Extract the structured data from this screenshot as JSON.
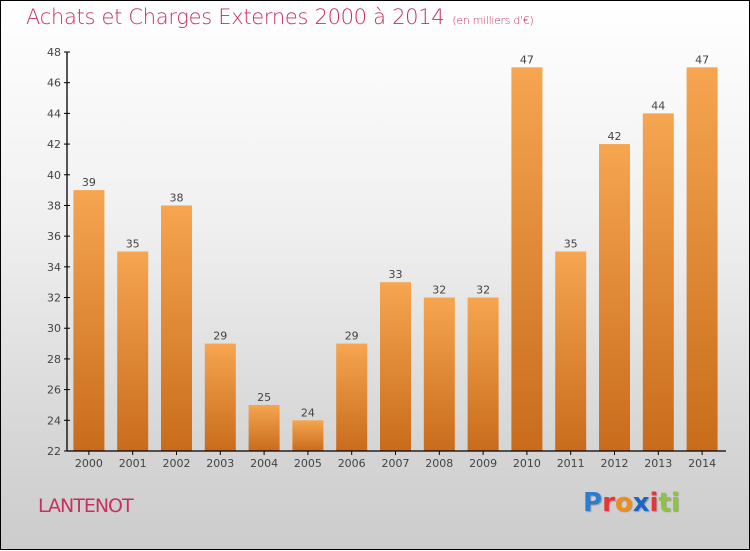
{
  "chart_data": {
    "type": "bar",
    "title": "Achats et Charges Externes 2000 à 2014",
    "subtitle": "(en milliers d'€)",
    "categories": [
      "2000",
      "2001",
      "2002",
      "2003",
      "2004",
      "2005",
      "2006",
      "2007",
      "2008",
      "2009",
      "2010",
      "2011",
      "2012",
      "2013",
      "2014"
    ],
    "values": [
      39,
      35,
      38,
      29,
      25,
      24,
      29,
      33,
      32,
      32,
      47,
      35,
      42,
      44,
      47
    ],
    "xlabel": "",
    "ylabel": "",
    "ylim": [
      22,
      48
    ],
    "yticks": [
      22,
      24,
      26,
      28,
      30,
      32,
      34,
      36,
      38,
      40,
      42,
      44,
      46,
      48
    ],
    "grid": false,
    "legend": "none",
    "bar_color_top": "#f6a550",
    "bar_color_bottom": "#c86c1c"
  },
  "footer": {
    "town": "LANTENOT",
    "logo": [
      "P",
      "r",
      "o",
      "x",
      "i",
      "ti"
    ]
  }
}
